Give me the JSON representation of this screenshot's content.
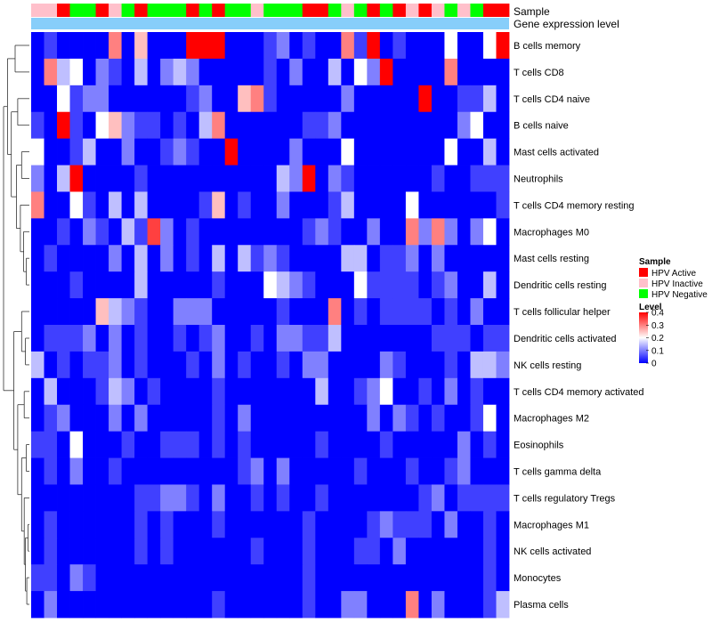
{
  "chart_data": {
    "type": "heatmap",
    "annotation_tracks": [
      {
        "name": "Sample",
        "label": "Sample"
      },
      {
        "name": "Gene expression level",
        "label": "Gene expression level"
      }
    ],
    "sample_groups": [
      "HPV Inactive",
      "HPV Inactive",
      "HPV Active",
      "HPV Negative",
      "HPV Negative",
      "HPV Active",
      "HPV Inactive",
      "HPV Negative",
      "HPV Active",
      "HPV Negative",
      "HPV Negative",
      "HPV Negative",
      "HPV Active",
      "HPV Negative",
      "HPV Active",
      "HPV Negative",
      "HPV Negative",
      "HPV Inactive",
      "HPV Negative",
      "HPV Negative",
      "HPV Negative",
      "HPV Active",
      "HPV Active",
      "HPV Negative",
      "HPV Inactive",
      "HPV Negative",
      "HPV Active",
      "HPV Negative",
      "HPV Active",
      "HPV Inactive",
      "HPV Active",
      "HPV Inactive",
      "HPV Negative",
      "HPV Inactive",
      "HPV Negative",
      "HPV Active",
      "HPV Active"
    ],
    "gene_expression_level_color": "#87cefa",
    "rows": [
      "B cells memory",
      "T cells CD8",
      "T cells CD4 naive",
      "B cells naive",
      "Mast cells activated",
      "Neutrophils",
      "T cells CD4 memory resting",
      "Macrophages M0",
      "Mast cells resting",
      "Dendritic cells resting",
      "T cells follicular helper",
      "Dendritic cells activated",
      "NK cells resting",
      "T cells CD4 memory activated",
      "Macrophages M2",
      "Eosinophils",
      "T cells gamma delta",
      "T cells regulatory  Tregs",
      "Macrophages M1",
      "NK cells activated",
      "Monocytes",
      "Plasma cells"
    ],
    "values": [
      [
        0.0,
        0.05,
        0.0,
        0.0,
        0.0,
        0.0,
        0.3,
        0.0,
        0.25,
        0.0,
        0.0,
        0.0,
        0.4,
        0.4,
        0.4,
        0.0,
        0.0,
        0.0,
        0.05,
        0.1,
        0.0,
        0.05,
        0.0,
        0.0,
        0.3,
        0.05,
        0.4,
        0.0,
        0.05,
        0.0,
        0.0,
        0.0,
        0.2,
        0.0,
        0.0,
        0.2,
        0.4
      ],
      [
        0.0,
        0.3,
        0.15,
        0.2,
        0.0,
        0.1,
        0.05,
        0.0,
        0.15,
        0.0,
        0.1,
        0.15,
        0.1,
        0.0,
        0.0,
        0.0,
        0.0,
        0.0,
        0.05,
        0.0,
        0.1,
        0.0,
        0.0,
        0.15,
        0.0,
        0.2,
        0.1,
        0.4,
        0.0,
        0.0,
        0.0,
        0.0,
        0.3,
        0.0,
        0.0,
        0.0,
        0.0
      ],
      [
        0.0,
        0.0,
        0.2,
        0.05,
        0.1,
        0.1,
        0.0,
        0.0,
        0.0,
        0.0,
        0.0,
        0.0,
        0.05,
        0.1,
        0.0,
        0.0,
        0.25,
        0.3,
        0.05,
        0.0,
        0.0,
        0.0,
        0.0,
        0.0,
        0.1,
        0.0,
        0.0,
        0.0,
        0.0,
        0.0,
        0.4,
        0.0,
        0.0,
        0.05,
        0.05,
        0.15,
        0.0
      ],
      [
        0.05,
        0.0,
        0.4,
        0.05,
        0.0,
        0.2,
        0.25,
        0.1,
        0.05,
        0.05,
        0.0,
        0.05,
        0.0,
        0.15,
        0.3,
        0.0,
        0.0,
        0.0,
        0.0,
        0.0,
        0.0,
        0.05,
        0.05,
        0.1,
        0.0,
        0.0,
        0.0,
        0.0,
        0.0,
        0.0,
        0.0,
        0.0,
        0.0,
        0.1,
        0.2,
        0.0,
        0.0
      ],
      [
        0.2,
        0.0,
        0.0,
        0.05,
        0.15,
        0.0,
        0.0,
        0.1,
        0.0,
        0.0,
        0.05,
        0.1,
        0.05,
        0.0,
        0.0,
        0.4,
        0.0,
        0.0,
        0.0,
        0.0,
        0.1,
        0.0,
        0.0,
        0.0,
        0.2,
        0.0,
        0.0,
        0.0,
        0.0,
        0.0,
        0.0,
        0.0,
        0.2,
        0.0,
        0.0,
        0.15,
        0.0
      ],
      [
        0.1,
        0.0,
        0.15,
        0.4,
        0.0,
        0.0,
        0.0,
        0.0,
        0.05,
        0.0,
        0.0,
        0.0,
        0.0,
        0.0,
        0.0,
        0.0,
        0.0,
        0.0,
        0.0,
        0.15,
        0.1,
        0.4,
        0.0,
        0.1,
        0.05,
        0.0,
        0.0,
        0.0,
        0.0,
        0.0,
        0.0,
        0.05,
        0.0,
        0.0,
        0.05,
        0.05,
        0.05
      ],
      [
        0.3,
        0.0,
        0.0,
        0.2,
        0.05,
        0.0,
        0.15,
        0.0,
        0.15,
        0.0,
        0.0,
        0.0,
        0.0,
        0.05,
        0.25,
        0.0,
        0.05,
        0.0,
        0.0,
        0.1,
        0.0,
        0.0,
        0.0,
        0.05,
        0.15,
        0.0,
        0.0,
        0.0,
        0.0,
        0.2,
        0.0,
        0.0,
        0.0,
        0.0,
        0.0,
        0.0,
        0.05
      ],
      [
        0.0,
        0.0,
        0.05,
        0.0,
        0.1,
        0.05,
        0.0,
        0.15,
        0.05,
        0.35,
        0.1,
        0.0,
        0.05,
        0.0,
        0.0,
        0.0,
        0.0,
        0.0,
        0.0,
        0.0,
        0.0,
        0.05,
        0.1,
        0.05,
        0.0,
        0.0,
        0.1,
        0.0,
        0.0,
        0.3,
        0.1,
        0.3,
        0.1,
        0.0,
        0.1,
        0.2,
        0.0
      ],
      [
        0.0,
        0.05,
        0.0,
        0.0,
        0.0,
        0.0,
        0.1,
        0.0,
        0.15,
        0.0,
        0.1,
        0.0,
        0.05,
        0.0,
        0.15,
        0.0,
        0.15,
        0.05,
        0.1,
        0.05,
        0.0,
        0.0,
        0.0,
        0.0,
        0.15,
        0.15,
        0.0,
        0.05,
        0.05,
        0.1,
        0.0,
        0.1,
        0.0,
        0.0,
        0.0,
        0.0,
        0.0
      ],
      [
        0.0,
        0.0,
        0.0,
        0.05,
        0.0,
        0.0,
        0.0,
        0.0,
        0.15,
        0.0,
        0.0,
        0.0,
        0.0,
        0.0,
        0.05,
        0.0,
        0.0,
        0.0,
        0.2,
        0.15,
        0.1,
        0.05,
        0.0,
        0.0,
        0.0,
        0.2,
        0.05,
        0.05,
        0.05,
        0.05,
        0.0,
        0.05,
        0.1,
        0.0,
        0.0,
        0.15,
        0.0
      ],
      [
        0.0,
        0.0,
        0.0,
        0.0,
        0.0,
        0.25,
        0.15,
        0.1,
        0.05,
        0.0,
        0.0,
        0.1,
        0.1,
        0.1,
        0.0,
        0.0,
        0.0,
        0.0,
        0.0,
        0.05,
        0.0,
        0.0,
        0.0,
        0.3,
        0.0,
        0.05,
        0.0,
        0.05,
        0.05,
        0.05,
        0.05,
        0.0,
        0.05,
        0.0,
        0.1,
        0.0,
        0.0
      ],
      [
        0.0,
        0.05,
        0.05,
        0.05,
        0.1,
        0.0,
        0.1,
        0.0,
        0.05,
        0.0,
        0.0,
        0.05,
        0.0,
        0.05,
        0.1,
        0.0,
        0.0,
        0.05,
        0.0,
        0.1,
        0.1,
        0.05,
        0.05,
        0.15,
        0.0,
        0.0,
        0.0,
        0.0,
        0.0,
        0.0,
        0.0,
        0.05,
        0.05,
        0.05,
        0.0,
        0.05,
        0.05
      ],
      [
        0.15,
        0.0,
        0.05,
        0.0,
        0.05,
        0.05,
        0.1,
        0.0,
        0.05,
        0.0,
        0.0,
        0.0,
        0.05,
        0.0,
        0.1,
        0.0,
        0.05,
        0.0,
        0.0,
        0.05,
        0.0,
        0.1,
        0.1,
        0.0,
        0.0,
        0.0,
        0.0,
        0.1,
        0.05,
        0.0,
        0.0,
        0.0,
        0.05,
        0.0,
        0.15,
        0.15,
        0.1
      ],
      [
        0.0,
        0.15,
        0.0,
        0.0,
        0.0,
        0.05,
        0.15,
        0.1,
        0.0,
        0.05,
        0.0,
        0.0,
        0.0,
        0.0,
        0.05,
        0.0,
        0.0,
        0.0,
        0.0,
        0.0,
        0.0,
        0.0,
        0.15,
        0.0,
        0.0,
        0.05,
        0.1,
        0.2,
        0.0,
        0.0,
        0.05,
        0.0,
        0.1,
        0.0,
        0.05,
        0.0,
        0.0
      ],
      [
        0.0,
        0.05,
        0.1,
        0.0,
        0.0,
        0.0,
        0.1,
        0.0,
        0.1,
        0.0,
        0.0,
        0.0,
        0.0,
        0.0,
        0.05,
        0.0,
        0.1,
        0.0,
        0.0,
        0.0,
        0.0,
        0.0,
        0.0,
        0.0,
        0.0,
        0.0,
        0.1,
        0.0,
        0.1,
        0.05,
        0.0,
        0.05,
        0.0,
        0.0,
        0.05,
        0.2,
        0.0
      ],
      [
        0.05,
        0.05,
        0.0,
        0.2,
        0.0,
        0.0,
        0.0,
        0.05,
        0.0,
        0.0,
        0.05,
        0.05,
        0.05,
        0.0,
        0.05,
        0.0,
        0.05,
        0.0,
        0.0,
        0.0,
        0.0,
        0.0,
        0.05,
        0.0,
        0.0,
        0.0,
        0.0,
        0.05,
        0.0,
        0.0,
        0.0,
        0.0,
        0.0,
        0.1,
        0.0,
        0.05,
        0.0
      ],
      [
        0.0,
        0.05,
        0.0,
        0.1,
        0.0,
        0.0,
        0.05,
        0.0,
        0.0,
        0.0,
        0.0,
        0.0,
        0.0,
        0.0,
        0.0,
        0.0,
        0.05,
        0.1,
        0.0,
        0.1,
        0.0,
        0.0,
        0.0,
        0.0,
        0.0,
        0.05,
        0.0,
        0.0,
        0.0,
        0.05,
        0.0,
        0.0,
        0.05,
        0.1,
        0.0,
        0.0,
        0.0
      ],
      [
        0.0,
        0.0,
        0.0,
        0.0,
        0.0,
        0.0,
        0.0,
        0.0,
        0.05,
        0.05,
        0.1,
        0.1,
        0.05,
        0.0,
        0.1,
        0.0,
        0.0,
        0.05,
        0.0,
        0.05,
        0.0,
        0.0,
        0.05,
        0.0,
        0.0,
        0.0,
        0.0,
        0.0,
        0.0,
        0.0,
        0.05,
        0.1,
        0.0,
        0.05,
        0.05,
        0.05,
        0.05
      ],
      [
        0.0,
        0.05,
        0.0,
        0.0,
        0.0,
        0.0,
        0.0,
        0.0,
        0.05,
        0.0,
        0.05,
        0.0,
        0.0,
        0.0,
        0.05,
        0.0,
        0.0,
        0.0,
        0.0,
        0.0,
        0.0,
        0.05,
        0.0,
        0.0,
        0.0,
        0.0,
        0.05,
        0.1,
        0.05,
        0.05,
        0.05,
        0.0,
        0.1,
        0.0,
        0.0,
        0.05,
        0.0
      ],
      [
        0.0,
        0.05,
        0.0,
        0.0,
        0.0,
        0.0,
        0.0,
        0.0,
        0.05,
        0.0,
        0.05,
        0.0,
        0.0,
        0.0,
        0.0,
        0.0,
        0.0,
        0.05,
        0.0,
        0.0,
        0.0,
        0.05,
        0.0,
        0.0,
        0.0,
        0.05,
        0.05,
        0.0,
        0.1,
        0.0,
        0.0,
        0.0,
        0.0,
        0.0,
        0.0,
        0.05,
        0.0
      ],
      [
        0.05,
        0.05,
        0.0,
        0.1,
        0.05,
        0.0,
        0.0,
        0.0,
        0.0,
        0.0,
        0.0,
        0.0,
        0.0,
        0.0,
        0.0,
        0.0,
        0.0,
        0.0,
        0.0,
        0.0,
        0.0,
        0.05,
        0.0,
        0.0,
        0.0,
        0.0,
        0.0,
        0.0,
        0.0,
        0.0,
        0.0,
        0.0,
        0.0,
        0.0,
        0.0,
        0.05,
        0.0
      ],
      [
        0.0,
        0.1,
        0.0,
        0.0,
        0.0,
        0.0,
        0.0,
        0.0,
        0.0,
        0.0,
        0.0,
        0.0,
        0.0,
        0.0,
        0.05,
        0.0,
        0.0,
        0.0,
        0.0,
        0.0,
        0.0,
        0.05,
        0.0,
        0.0,
        0.1,
        0.1,
        0.0,
        0.0,
        0.0,
        0.3,
        0.0,
        0.1,
        0.0,
        0.0,
        0.0,
        0.05,
        0.15
      ]
    ],
    "color_scale": {
      "low": "#0000ff",
      "mid": "#ffffff",
      "high": "#ff0000",
      "domain": [
        0,
        0.2,
        0.4
      ]
    },
    "legend": {
      "sample": {
        "title": "Sample",
        "items": [
          {
            "label": "HPV Active",
            "color": "#ff0000"
          },
          {
            "label": "HPV Inactive",
            "color": "#ffc0cb"
          },
          {
            "label": "HPV Negative",
            "color": "#00ff00"
          }
        ]
      },
      "level": {
        "title": "Level",
        "ticks": [
          "0.4",
          "0.3",
          "0.2",
          "0.1",
          "0"
        ],
        "tick_values": [
          0.4,
          0.3,
          0.2,
          0.1,
          0
        ]
      },
      "placement": "right"
    },
    "row_dendrogram": true,
    "xlabel": "",
    "ylabel": ""
  }
}
